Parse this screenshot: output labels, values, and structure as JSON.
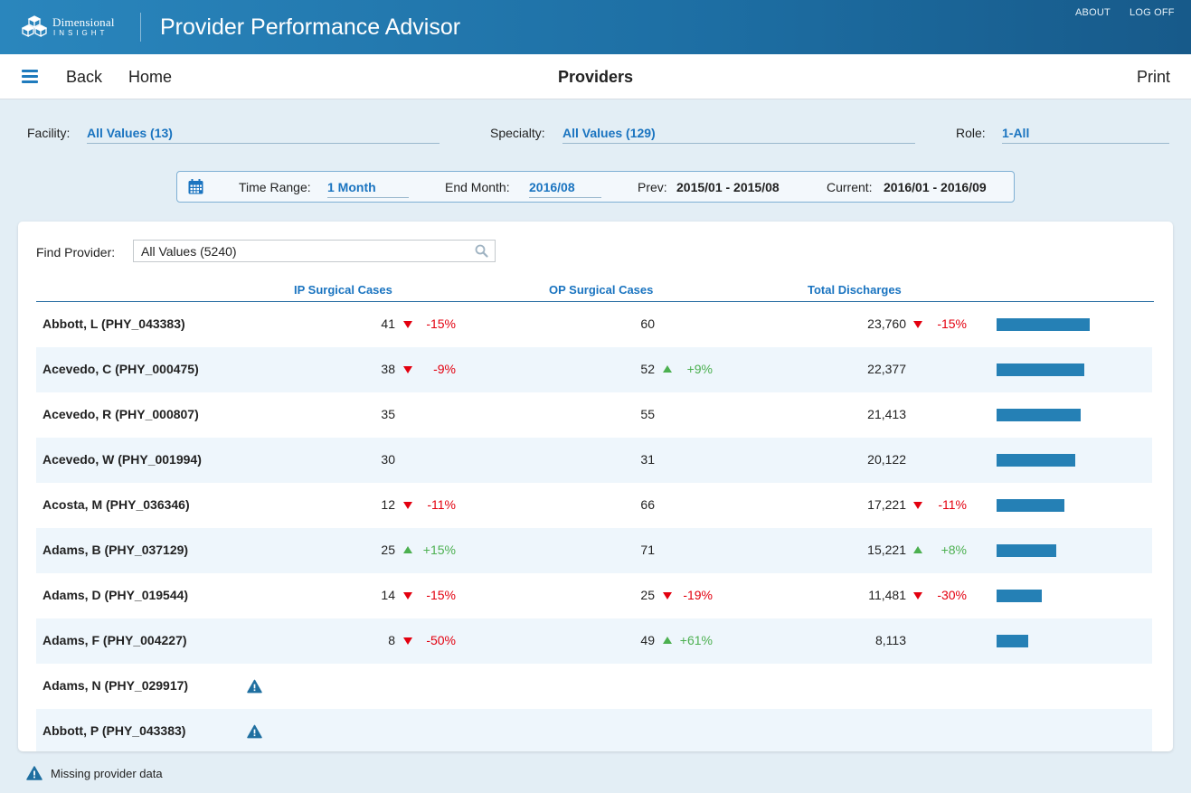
{
  "brand": {
    "name": "Dimensional",
    "sub": "INSIGHT"
  },
  "app_title": "Provider Performance Advisor",
  "top_links": {
    "about": "ABOUT",
    "logoff": "LOG OFF"
  },
  "nav": {
    "back": "Back",
    "home": "Home",
    "title": "Providers",
    "print": "Print"
  },
  "filters": {
    "facility": {
      "label": "Facility:",
      "value": "All Values (13)"
    },
    "specialty": {
      "label": "Specialty:",
      "value": "All Values (129)"
    },
    "role": {
      "label": "Role:",
      "value": "1-All"
    }
  },
  "time": {
    "range_label": "Time Range:",
    "range_value": "1 Month",
    "end_label": "End Month:",
    "end_value": "2016/08",
    "prev_label": "Prev:",
    "prev_value": "2015/01 - 2015/08",
    "current_label": "Current:",
    "current_value": "2016/01 - 2016/09"
  },
  "find": {
    "label": "Find Provider:",
    "value": "All Values (5240)"
  },
  "columns": {
    "ip": "IP Surgical Cases",
    "op": "OP Surgical Cases",
    "total": "Total Discharges"
  },
  "bar_max": 23760,
  "rows": [
    {
      "name": "Abbott, L (PHY_043383)",
      "ip": "41",
      "ip_dir": "down",
      "ip_pct": "-15%",
      "op": "60",
      "op_dir": "",
      "op_pct": "",
      "total": "23,760",
      "total_dir": "down",
      "total_pct": "-15%",
      "total_value": 23760,
      "missing": false
    },
    {
      "name": "Acevedo, C (PHY_000475)",
      "ip": "38",
      "ip_dir": "down",
      "ip_pct": "-9%",
      "op": "52",
      "op_dir": "up",
      "op_pct": "+9%",
      "total": "22,377",
      "total_dir": "",
      "total_pct": "",
      "total_value": 22377,
      "missing": false
    },
    {
      "name": "Acevedo, R (PHY_000807)",
      "ip": "35",
      "ip_dir": "",
      "ip_pct": "",
      "op": "55",
      "op_dir": "",
      "op_pct": "",
      "total": "21,413",
      "total_dir": "",
      "total_pct": "",
      "total_value": 21413,
      "missing": false
    },
    {
      "name": "Acevedo, W (PHY_001994)",
      "ip": "30",
      "ip_dir": "",
      "ip_pct": "",
      "op": "31",
      "op_dir": "",
      "op_pct": "",
      "total": "20,122",
      "total_dir": "",
      "total_pct": "",
      "total_value": 20122,
      "missing": false
    },
    {
      "name": "Acosta, M (PHY_036346)",
      "ip": "12",
      "ip_dir": "down",
      "ip_pct": "-11%",
      "op": "66",
      "op_dir": "",
      "op_pct": "",
      "total": "17,221",
      "total_dir": "down",
      "total_pct": "-11%",
      "total_value": 17221,
      "missing": false
    },
    {
      "name": "Adams, B (PHY_037129)",
      "ip": "25",
      "ip_dir": "up",
      "ip_pct": "+15%",
      "op": "71",
      "op_dir": "",
      "op_pct": "",
      "total": "15,221",
      "total_dir": "up",
      "total_pct": "+8%",
      "total_value": 15221,
      "missing": false
    },
    {
      "name": "Adams, D (PHY_019544)",
      "ip": "14",
      "ip_dir": "down",
      "ip_pct": "-15%",
      "op": "25",
      "op_dir": "down",
      "op_pct": "-19%",
      "total": "11,481",
      "total_dir": "down",
      "total_pct": "-30%",
      "total_value": 11481,
      "missing": false
    },
    {
      "name": "Adams, F (PHY_004227)",
      "ip": "8",
      "ip_dir": "down",
      "ip_pct": "-50%",
      "op": "49",
      "op_dir": "up",
      "op_pct": "+61%",
      "total": "8,113",
      "total_dir": "",
      "total_pct": "",
      "total_value": 8113,
      "missing": false
    },
    {
      "name": "Adams, N (PHY_029917)",
      "ip": "",
      "ip_dir": "",
      "ip_pct": "",
      "op": "",
      "op_dir": "",
      "op_pct": "",
      "total": "",
      "total_dir": "",
      "total_pct": "",
      "total_value": 0,
      "missing": true
    },
    {
      "name": "Abbott, P (PHY_043383)",
      "ip": "",
      "ip_dir": "",
      "ip_pct": "",
      "op": "",
      "op_dir": "",
      "op_pct": "",
      "total": "",
      "total_dir": "",
      "total_pct": "",
      "total_value": 0,
      "missing": true
    }
  ],
  "legend": {
    "text": "Missing provider data",
    "icon": "warning-icon"
  },
  "colors": {
    "accent": "#1a74c0",
    "banner": "#1d6ea3",
    "negative": "#e3000f",
    "positive": "#4cb050",
    "bar": "#2580b5"
  }
}
